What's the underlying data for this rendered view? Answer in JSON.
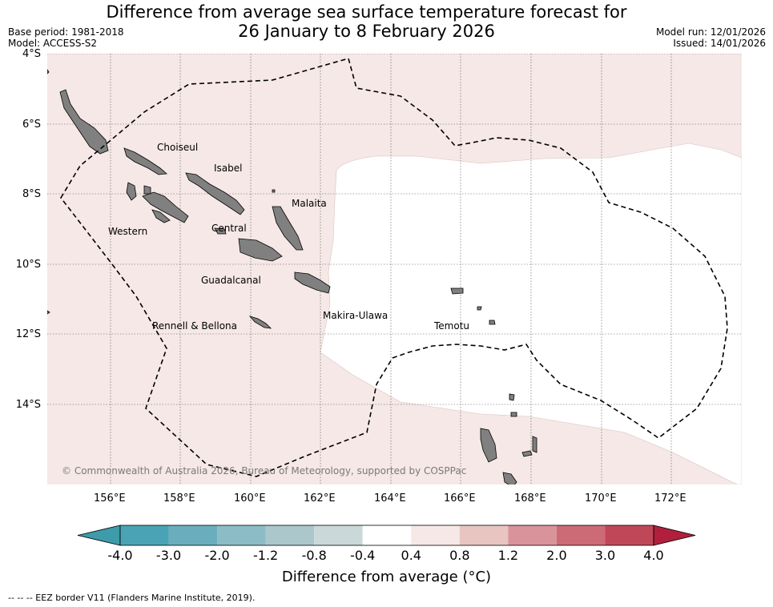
{
  "title": {
    "line1": "Difference from average sea surface temperature forecast for",
    "line2": "26 January to 8 February 2026"
  },
  "meta_left": {
    "base_period": "Base period: 1981-2018",
    "model": "Model: ACCESS-S2"
  },
  "meta_right": {
    "model_run": "Model run: 12/01/2026",
    "issued": "Issued: 14/01/2026"
  },
  "map": {
    "lat_labels": [
      "4°S",
      "6°S",
      "8°S",
      "10°S",
      "12°S",
      "14°S"
    ],
    "lon_labels": [
      "156°E",
      "158°E",
      "160°E",
      "162°E",
      "164°E",
      "166°E",
      "168°E",
      "170°E",
      "172°E"
    ],
    "extent": {
      "lon_min": 154.0,
      "lon_max": 174.0,
      "lat_max": -4.0,
      "lat_min": -16.3
    },
    "regions": [
      "Choiseul",
      "Isabel",
      "Malaita",
      "Western",
      "Central",
      "Guadalcanal",
      "Makira-Ulawa",
      "Rennell & Bellona",
      "Temotu"
    ],
    "copyright": "© Commonwealth of Australia 2026, Bureau of Meteorology, supported by COSPPac",
    "colors": {
      "warm_0_4_0_8": "#f5e8e6",
      "neutral": "#ffffff",
      "land": "#808080"
    }
  },
  "colorbar": {
    "title": "Difference from average (°C)",
    "tick_labels": [
      "-4.0",
      "-3.0",
      "-2.0",
      "-1.2",
      "-0.8",
      "-0.4",
      "0.4",
      "0.8",
      "1.2",
      "2.0",
      "3.0",
      "4.0"
    ],
    "colors": [
      "#3e9baa",
      "#4aa3b4",
      "#6aaebd",
      "#8cbcc6",
      "#abc7cb",
      "#cbd8da",
      "#ffffff",
      "#f5e8e6",
      "#e8c5c1",
      "#d9939b",
      "#cc6a76",
      "#c04758",
      "#b11f3c"
    ]
  },
  "footnote": "--  --  -- EEZ border V11 (Flanders Marine Institute, 2019)."
}
